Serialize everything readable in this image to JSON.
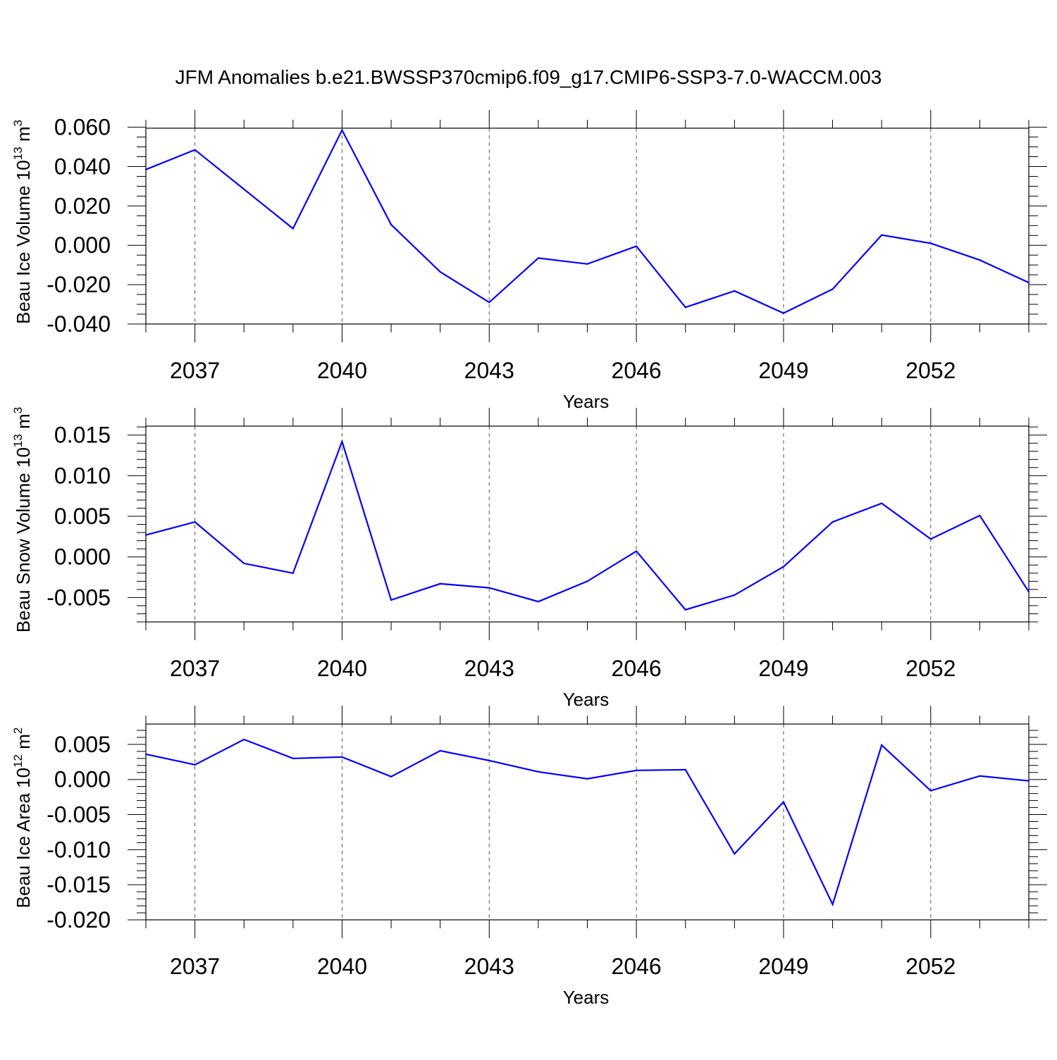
{
  "title": "JFM Anomalies b.e21.BWSSP370cmip6.f09_g17.CMIP6-SSP3-7.0-WACCM.003",
  "line_color": "#0000ff",
  "chart_data": [
    {
      "type": "line",
      "ylabel": "Beau Ice Volume 10",
      "ylabel_exp": "13",
      "ylabel_unit": "m",
      "ylabel_unit_exp": "3",
      "xlabel": "Years",
      "x": [
        2036,
        2037,
        2038,
        2039,
        2040,
        2041,
        2042,
        2043,
        2044,
        2045,
        2046,
        2047,
        2048,
        2049,
        2050,
        2051,
        2052,
        2053,
        2054
      ],
      "values": [
        0.0385,
        0.0485,
        0.0285,
        0.0085,
        0.0585,
        0.0105,
        -0.0135,
        -0.029,
        -0.0065,
        -0.0095,
        -0.0005,
        -0.0315,
        -0.0232,
        -0.0345,
        -0.0223,
        0.0052,
        0.001,
        -0.0075,
        -0.019
      ],
      "xlim": [
        2036,
        2054
      ],
      "ylim": [
        -0.04,
        0.0595
      ],
      "yticks": [
        -0.04,
        -0.02,
        0.0,
        0.02,
        0.04,
        0.06
      ],
      "ytick_labels": [
        "-0.040",
        "-0.020",
        "0.000",
        "0.020",
        "0.040",
        "0.060"
      ],
      "yminor_step": 0.005,
      "xticks": [
        2037,
        2040,
        2043,
        2046,
        2049,
        2052
      ],
      "xtick_labels": [
        "2037",
        "2040",
        "2043",
        "2046",
        "2049",
        "2052"
      ],
      "grid": "x-major-dashed"
    },
    {
      "type": "line",
      "ylabel": "Beau Snow Volume 10",
      "ylabel_exp": "13",
      "ylabel_unit": "m",
      "ylabel_unit_exp": "3",
      "xlabel": "Years",
      "x": [
        2036,
        2037,
        2038,
        2039,
        2040,
        2041,
        2042,
        2043,
        2044,
        2045,
        2046,
        2047,
        2048,
        2049,
        2050,
        2051,
        2052,
        2053,
        2054
      ],
      "values": [
        0.0027,
        0.0043,
        -0.0008,
        -0.002,
        0.0142,
        -0.0053,
        -0.0033,
        -0.0038,
        -0.0055,
        -0.003,
        0.0007,
        -0.0065,
        -0.0047,
        -0.0012,
        0.0043,
        0.0066,
        0.0022,
        0.0051,
        -0.0043
      ],
      "xlim": [
        2036,
        2054
      ],
      "ylim": [
        -0.008,
        0.0161
      ],
      "yticks": [
        -0.005,
        0.0,
        0.005,
        0.01,
        0.015
      ],
      "ytick_labels": [
        "-0.005",
        "0.000",
        "0.005",
        "0.010",
        "0.015"
      ],
      "yminor_step": 0.001,
      "xticks": [
        2037,
        2040,
        2043,
        2046,
        2049,
        2052
      ],
      "xtick_labels": [
        "2037",
        "2040",
        "2043",
        "2046",
        "2049",
        "2052"
      ],
      "grid": "x-major-dashed"
    },
    {
      "type": "line",
      "ylabel": "Beau Ice Area 10",
      "ylabel_exp": "12",
      "ylabel_unit": "m",
      "ylabel_unit_exp": "2",
      "xlabel": "Years",
      "x": [
        2036,
        2037,
        2038,
        2039,
        2040,
        2041,
        2042,
        2043,
        2044,
        2045,
        2046,
        2047,
        2048,
        2049,
        2050,
        2051,
        2052,
        2053,
        2054
      ],
      "values": [
        0.0036,
        0.0021,
        0.0057,
        0.003,
        0.0032,
        0.0004,
        0.0041,
        0.0027,
        0.0011,
        0.0001,
        0.0013,
        0.0014,
        -0.0106,
        -0.0032,
        -0.0178,
        0.0049,
        -0.0016,
        0.0005,
        -0.0002
      ],
      "xlim": [
        2036,
        2054
      ],
      "ylim": [
        -0.02,
        0.0079
      ],
      "yticks": [
        -0.02,
        -0.015,
        -0.01,
        -0.005,
        0.0,
        0.005
      ],
      "ytick_labels": [
        "-0.020",
        "-0.015",
        "-0.010",
        "-0.005",
        "0.000",
        "0.005"
      ],
      "yminor_step": 0.001,
      "xticks": [
        2037,
        2040,
        2043,
        2046,
        2049,
        2052
      ],
      "xtick_labels": [
        "2037",
        "2040",
        "2043",
        "2046",
        "2049",
        "2052"
      ],
      "grid": "x-major-dashed"
    }
  ]
}
